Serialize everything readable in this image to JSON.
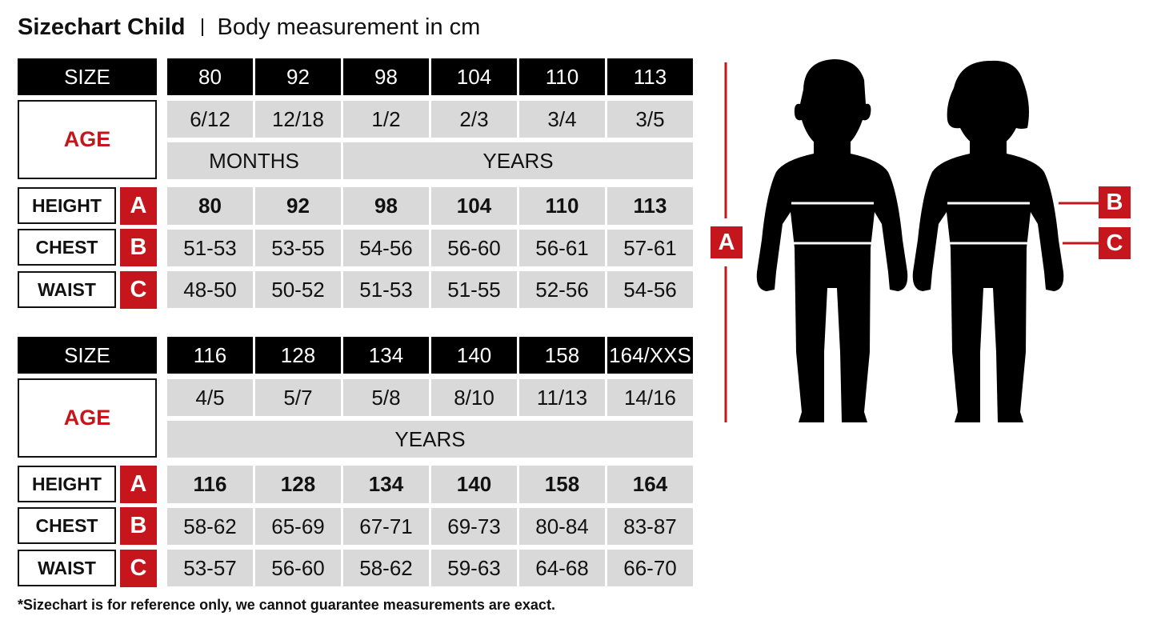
{
  "header": {
    "title": "Sizechart Child",
    "subtitle": "Body measurement in cm"
  },
  "labels": {
    "size": "SIZE",
    "age": "AGE",
    "height": "HEIGHT",
    "chest": "CHEST",
    "waist": "WAIST",
    "letter_height": "A",
    "letter_chest": "B",
    "letter_waist": "C"
  },
  "tables": [
    {
      "sizes": [
        "80",
        "92",
        "98",
        "104",
        "110",
        "113"
      ],
      "ages": [
        "6/12",
        "12/18",
        "1/2",
        "2/3",
        "3/4",
        "3/5"
      ],
      "age_units": [
        {
          "label": "MONTHS",
          "span": 2
        },
        {
          "label": "YEARS",
          "span": 4
        }
      ],
      "height": [
        "80",
        "92",
        "98",
        "104",
        "110",
        "113"
      ],
      "chest": [
        "51-53",
        "53-55",
        "54-56",
        "56-60",
        "56-61",
        "57-61"
      ],
      "waist": [
        "48-50",
        "50-52",
        "51-53",
        "51-55",
        "52-56",
        "54-56"
      ]
    },
    {
      "sizes": [
        "116",
        "128",
        "134",
        "140",
        "158",
        "164/XXS"
      ],
      "ages": [
        "4/5",
        "5/7",
        "5/8",
        "8/10",
        "11/13",
        "14/16"
      ],
      "age_units": [
        {
          "label": "YEARS",
          "span": 6
        }
      ],
      "height": [
        "116",
        "128",
        "134",
        "140",
        "158",
        "164"
      ],
      "chest": [
        "58-62",
        "65-69",
        "67-71",
        "69-73",
        "80-84",
        "83-87"
      ],
      "waist": [
        "53-57",
        "56-60",
        "58-62",
        "59-63",
        "64-68",
        "66-70"
      ]
    }
  ],
  "figure": {
    "height_marker": "A",
    "chest_marker": "B",
    "waist_marker": "C"
  },
  "footnote": "*Sizechart is for reference only, we cannot guarantee measurements are exact.",
  "colors": {
    "accent_red": "#c4161c",
    "header_black": "#000000",
    "cell_gray": "#d9d9d9"
  }
}
